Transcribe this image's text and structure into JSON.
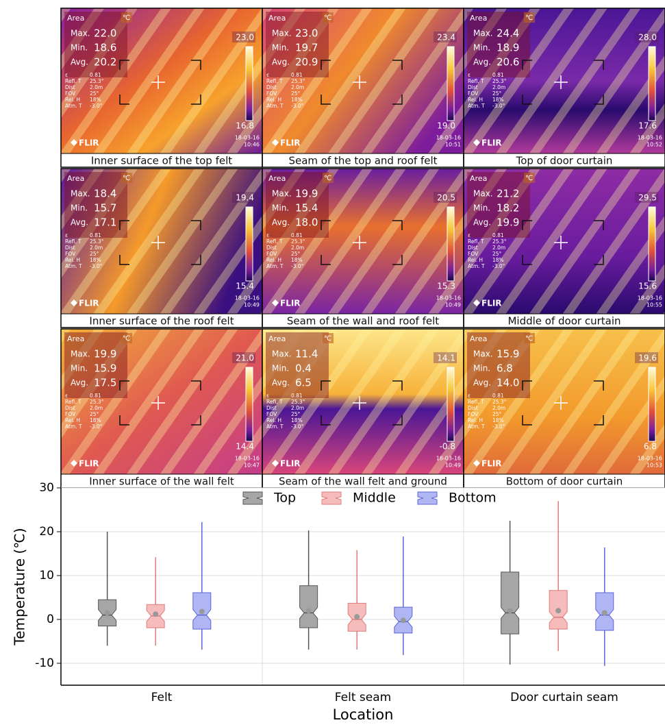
{
  "overlay": {
    "area": "Area",
    "unit": "℃",
    "max_label": "Max.",
    "min_label": "Min.",
    "avg_label": "Avg.",
    "params": [
      [
        "ε",
        "0.81"
      ],
      [
        "Refl. T",
        "25.3°"
      ],
      [
        "Dist",
        "2.0m"
      ],
      [
        "FOV",
        "25°"
      ],
      [
        "Rel. H",
        "18%"
      ],
      [
        "Atm. T",
        "-3.0°"
      ]
    ],
    "date": "18-03-16",
    "logo": "FLIR"
  },
  "panels": [
    {
      "caption": "Inner surface of the top felt",
      "max": "22.0",
      "min": "18.6",
      "avg": "20.2",
      "scale_max": "23.0",
      "scale_min": "16.8",
      "time": "10:46"
    },
    {
      "caption": "Seam of the top and roof felt",
      "max": "23.0",
      "min": "19.7",
      "avg": "20.9",
      "scale_max": "23.4",
      "scale_min": "19.0",
      "time": "10:51"
    },
    {
      "caption": "Top of door curtain",
      "max": "24.4",
      "min": "18.9",
      "avg": "20.6",
      "scale_max": "28.0",
      "scale_min": "17.6",
      "time": "10:52"
    },
    {
      "caption": "Inner surface of the roof felt",
      "max": "18.4",
      "min": "15.7",
      "avg": "17.1",
      "scale_max": "19.4",
      "scale_min": "15.4",
      "time": "10:49"
    },
    {
      "caption": "Seam of the wall and roof felt",
      "max": "19.9",
      "min": "15.4",
      "avg": "18.0",
      "scale_max": "20.5",
      "scale_min": "15.3",
      "time": "10:49"
    },
    {
      "caption": "Middle of door curtain",
      "max": "21.2",
      "min": "18.2",
      "avg": "19.9",
      "scale_max": "29.5",
      "scale_min": "15.6",
      "time": "10:55"
    },
    {
      "caption": "Inner surface of the wall felt",
      "max": "19.9",
      "min": "15.9",
      "avg": "17.5",
      "scale_max": "21.0",
      "scale_min": "14.4",
      "time": "10:47"
    },
    {
      "caption": "Seam of the wall felt and ground",
      "max": "11.4",
      "min": "0.4",
      "avg": "6.5",
      "scale_max": "14.1",
      "scale_min": "-0.8",
      "time": "10:49"
    },
    {
      "caption": "Bottom of door curtain",
      "max": "15.9",
      "min": "6.8",
      "avg": "14.0",
      "scale_max": "19.6",
      "scale_min": "6.8",
      "time": "10:53"
    }
  ],
  "chart_data": {
    "type": "box",
    "ylabel": "Temperature  (℃)",
    "xlabel": "Location",
    "categories": [
      "Felt",
      "Felt seam",
      "Door curtain seam"
    ],
    "ylim": [
      -15,
      30
    ],
    "yticks": [
      -10,
      0,
      10,
      20,
      30
    ],
    "grid": true,
    "legend": "top",
    "series": [
      {
        "name": "Top",
        "color": "#a6a6a6",
        "edge_color": "#555555",
        "min": [
          -6,
          -6.9,
          -10.3
        ],
        "q1": [
          -1.5,
          -1.9,
          -3.3
        ],
        "median": [
          1,
          1.5,
          1.5
        ],
        "q3": [
          4.5,
          7.7,
          10.8
        ],
        "max": [
          20,
          20.3,
          22.5
        ],
        "mean": [
          1.5,
          2,
          2
        ]
      },
      {
        "name": "Middle",
        "color": "#f6bcbc",
        "edge_color": "#e07a7a",
        "min": [
          -6,
          -6.9,
          -7.2
        ],
        "q1": [
          -1.9,
          -2.7,
          -2.2
        ],
        "median": [
          0.8,
          0,
          0.5
        ],
        "q3": [
          3.4,
          3.7,
          6.6
        ],
        "max": [
          14.2,
          15.8,
          27
        ],
        "mean": [
          1.2,
          0.6,
          2
        ]
      },
      {
        "name": "Bottom",
        "color": "#b0b6f4",
        "edge_color": "#5a64d8",
        "min": [
          -6.9,
          -8.1,
          -10.6
        ],
        "q1": [
          -2.2,
          -3.1,
          -2.5
        ],
        "median": [
          1,
          -0.5,
          1
        ],
        "q3": [
          6.1,
          2.8,
          6.1
        ],
        "max": [
          22.2,
          18.9,
          16.4
        ],
        "mean": [
          1.8,
          -0.2,
          1.5
        ]
      }
    ]
  }
}
